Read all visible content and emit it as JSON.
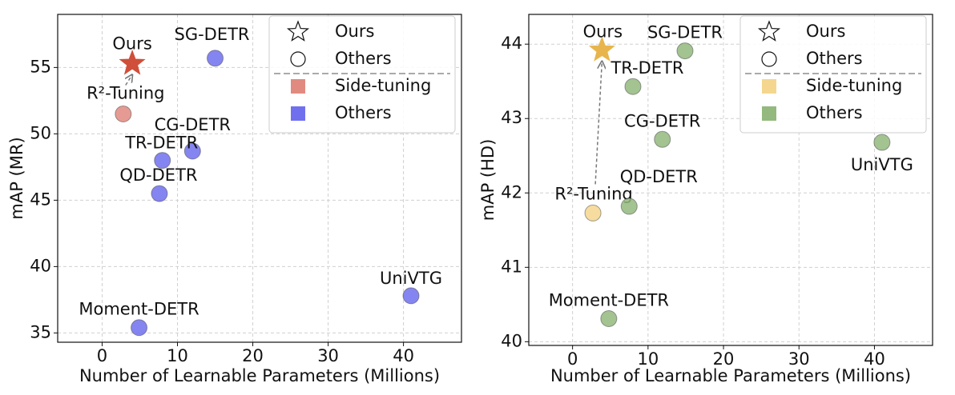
{
  "chart_data": [
    {
      "type": "scatter",
      "xlabel": "Number of Learnable Parameters (Millions)",
      "ylabel": "mAP (MR)",
      "xlim": [
        -5.9,
        47.7
      ],
      "ylim": [
        34.3,
        59
      ],
      "xticks": [
        0,
        10,
        20,
        30,
        40
      ],
      "yticks": [
        35,
        40,
        45,
        50,
        55
      ],
      "grid": true,
      "legend_markers": [
        {
          "name": "Ours",
          "shape": "star"
        },
        {
          "name": "Others",
          "shape": "circle"
        }
      ],
      "series": [
        {
          "name": "Side-tuning",
          "color": "#e08a80",
          "labels": [
            "Ours",
            "R²-Tuning"
          ],
          "x": [
            4.0,
            2.8
          ],
          "values": [
            55.3,
            51.5
          ],
          "shapes": [
            "star",
            "circle"
          ],
          "colors": [
            "#cf4f3a",
            "#e08a80"
          ]
        },
        {
          "name": "Others",
          "color": "#7070ee",
          "labels": [
            "SG-DETR",
            "CG-DETR",
            "TR-DETR",
            "QD-DETR",
            "Moment-DETR",
            "UniVTG"
          ],
          "x": [
            15.0,
            12.0,
            8.0,
            7.6,
            4.9,
            41.0
          ],
          "values": [
            55.7,
            48.7,
            48.0,
            45.5,
            35.4,
            37.8
          ],
          "shapes": [
            "circle",
            "circle",
            "circle",
            "circle",
            "circle",
            "circle"
          ],
          "colors": [
            "#7070ee",
            "#7070ee",
            "#7070ee",
            "#7070ee",
            "#7070ee",
            "#7070ee"
          ]
        }
      ]
    },
    {
      "type": "scatter",
      "xlabel": "Number of Learnable Parameters (Millions)",
      "ylabel": "mAP (HD)",
      "xlim": [
        -5.8,
        47.7
      ],
      "ylim": [
        39.95,
        44.4
      ],
      "xticks": [
        0,
        10,
        20,
        30,
        40
      ],
      "yticks": [
        40,
        41,
        42,
        43,
        44
      ],
      "grid": true,
      "legend_markers": [
        {
          "name": "Ours",
          "shape": "star"
        },
        {
          "name": "Others",
          "shape": "circle"
        }
      ],
      "series": [
        {
          "name": "Side-tuning",
          "color": "#f4d68e",
          "labels": [
            "Ours",
            "R²-Tuning"
          ],
          "x": [
            3.9,
            2.7
          ],
          "values": [
            43.92,
            41.73
          ],
          "shapes": [
            "star",
            "circle"
          ],
          "colors": [
            "#e8b54c",
            "#f4d68e"
          ]
        },
        {
          "name": "Others",
          "color": "#93b97e",
          "labels": [
            "SG-DETR",
            "TR-DETR",
            "CG-DETR",
            "UniVTG",
            "QD-DETR",
            "Moment-DETR"
          ],
          "x": [
            14.9,
            8.0,
            11.9,
            41.0,
            7.5,
            4.8
          ],
          "values": [
            43.91,
            43.43,
            42.72,
            42.68,
            41.82,
            40.31
          ],
          "shapes": [
            "circle",
            "circle",
            "circle",
            "circle",
            "circle",
            "circle"
          ],
          "colors": [
            "#93b97e",
            "#93b97e",
            "#93b97e",
            "#93b97e",
            "#93b97e",
            "#93b97e"
          ]
        }
      ]
    }
  ]
}
